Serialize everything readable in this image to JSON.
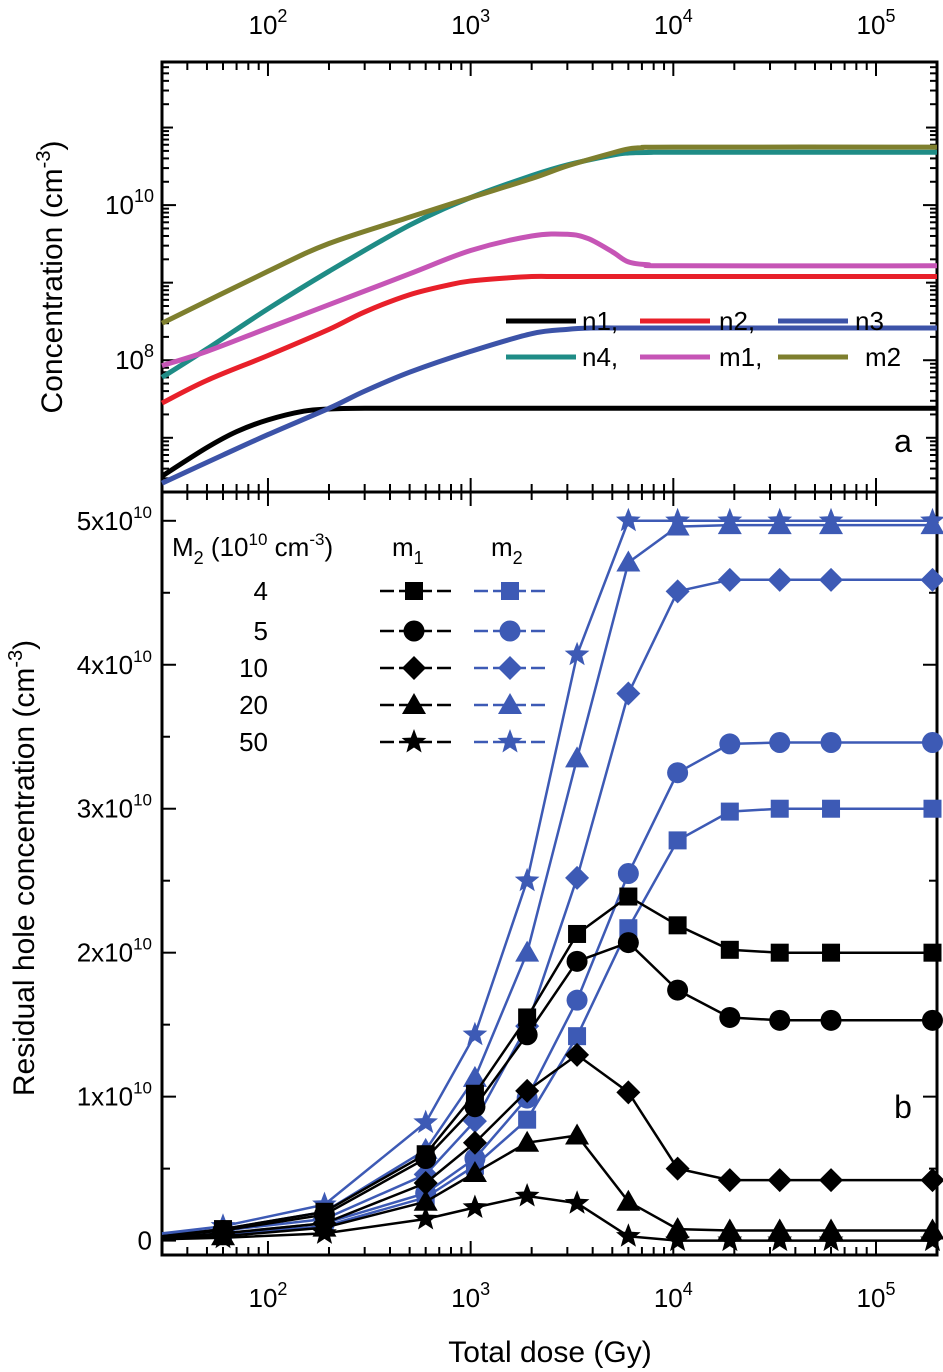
{
  "figure": {
    "xlabel": "Total dose (Gy)",
    "panel_a_label": "a",
    "panel_b_label": "b",
    "ylabel_a_text": "Concentration (cm",
    "ylabel_a_sup": "-3",
    "ylabel_a_close": ")",
    "ylabel_b_text": "Residual hole concentration (cm",
    "ylabel_b_sup": "-3",
    "ylabel_b_close": ")",
    "x_tick_base": "10",
    "x_tick_exps": [
      "2",
      "3",
      "4",
      "5"
    ],
    "a_tick_base": "10",
    "a_tick_exps": [
      "8",
      "10"
    ],
    "b_tick_labels": [
      "0",
      "1x10",
      "2x10",
      "3x10",
      "4x10",
      "5x10"
    ],
    "b_tick_sup": "10",
    "legend_a": {
      "row1": [
        "n1,",
        "n2,",
        "n3"
      ],
      "row2": [
        "n4,",
        "m1,",
        "m2"
      ]
    },
    "legend_b": {
      "header_main": "M",
      "header_sub": "2",
      "header_units": " (10",
      "header_units_sup": "10",
      "header_units_tail": " cm",
      "header_units_sup2": "-3",
      "header_close": ")",
      "col1_main": "m",
      "col1_sub": "1",
      "col2_main": "m",
      "col2_sub": "2",
      "values": [
        "4",
        "5",
        "10",
        "20",
        "50"
      ]
    }
  },
  "colors": {
    "n1": "#000000",
    "n2": "#e8202a",
    "n3": "#3c53a8",
    "n4": "#1f8c86",
    "m1": "#c655b6",
    "m2": "#7e7f2e",
    "black": "#000000",
    "blue": "#3d5ab5"
  },
  "chart_data": [
    {
      "type": "line",
      "panel": "a",
      "xscale": "log",
      "yscale": "log",
      "xlim": [
        30,
        200000
      ],
      "ylim": [
        2000000,
        700000000000
      ],
      "xlabel": "",
      "ylabel": "Concentration (cm-3)",
      "legend": "right",
      "series": [
        {
          "name": "n1",
          "x": [
            30,
            50,
            70,
            100,
            150,
            200,
            300,
            500,
            1000,
            10000,
            200000
          ],
          "y": [
            3200000,
            7500000,
            12000000,
            17000000,
            22000000,
            23500000,
            24000000,
            24000000,
            24000000,
            24000000,
            24000000
          ]
        },
        {
          "name": "n2",
          "x": [
            30,
            50,
            100,
            200,
            300,
            500,
            800,
            1000,
            1500,
            2000,
            3000,
            10000,
            200000
          ],
          "y": [
            28000000,
            55000000,
            115000000,
            250000000,
            420000000,
            700000000,
            950000000,
            1050000000,
            1150000000,
            1200000000,
            1200000000,
            1200000000,
            1200000000
          ]
        },
        {
          "name": "n3",
          "x": [
            30,
            60,
            100,
            200,
            300,
            500,
            1000,
            2000,
            3000,
            4000,
            6000,
            10000,
            200000
          ],
          "y": [
            2600000,
            6000000,
            11000000,
            24000000,
            40000000,
            70000000,
            130000000,
            220000000,
            250000000,
            260000000,
            260000000,
            260000000,
            260000000
          ]
        },
        {
          "name": "n4",
          "x": [
            30,
            50,
            100,
            200,
            500,
            1000,
            2000,
            3000,
            5000,
            6000,
            8000,
            10000,
            200000
          ],
          "y": [
            60000000,
            140000000,
            460000000,
            1400000000,
            5500000000,
            12500000000,
            24000000000,
            33000000000,
            44000000000,
            47000000000,
            48000000000,
            48000000000,
            48000000000
          ]
        },
        {
          "name": "m1",
          "x": [
            30,
            50,
            100,
            200,
            500,
            1000,
            2000,
            3000,
            3800,
            5000,
            6000,
            7500,
            10000,
            200000
          ],
          "y": [
            85000000,
            130000000,
            260000000,
            520000000,
            1300000000,
            2600000000,
            4000000000,
            4200000000,
            3700000000,
            2500000000,
            1850000000,
            1700000000,
            1650000000,
            1650000000
          ]
        },
        {
          "name": "m2",
          "x": [
            30,
            100,
            200,
            500,
            1000,
            2000,
            3000,
            5000,
            6000,
            7000,
            10000,
            200000
          ],
          "y": [
            300000000,
            1400000000,
            3200000000,
            7000000000,
            12500000000,
            22000000000,
            32000000000,
            47000000000,
            53000000000,
            55000000000,
            56000000000,
            56000000000
          ]
        }
      ]
    },
    {
      "type": "line",
      "panel": "b",
      "xscale": "log",
      "yscale": "linear",
      "xlim": [
        30,
        200000
      ],
      "ylim": [
        -0.1,
        5.2
      ],
      "y_unit": "1x10^10 cm-3",
      "xlabel": "Total dose (Gy)",
      "ylabel": "Residual hole concentration (cm-3)",
      "legend": "top-left",
      "x": [
        30,
        60,
        190,
        600,
        1050,
        1900,
        3350,
        6000,
        10500,
        19000,
        33500,
        60000,
        190000
      ],
      "series": [
        {
          "name": "m1 4",
          "marker": "square",
          "color": "black",
          "values": [
            0.03,
            0.08,
            0.2,
            0.6,
            1.02,
            1.55,
            2.13,
            2.39,
            2.19,
            2.02,
            2.0,
            2.0,
            2.0
          ]
        },
        {
          "name": "m1 5",
          "marker": "circle",
          "color": "black",
          "values": [
            0.03,
            0.07,
            0.18,
            0.57,
            0.93,
            1.43,
            1.94,
            2.07,
            1.74,
            1.55,
            1.53,
            1.53,
            1.53
          ]
        },
        {
          "name": "m1 10",
          "marker": "diamond",
          "color": "black",
          "values": [
            0.02,
            0.05,
            0.12,
            0.4,
            0.68,
            1.04,
            1.29,
            1.03,
            0.5,
            0.42,
            0.42,
            0.42,
            0.42
          ]
        },
        {
          "name": "m1 20",
          "marker": "triangle",
          "color": "black",
          "values": [
            0.02,
            0.03,
            0.09,
            0.27,
            0.47,
            0.68,
            0.73,
            0.27,
            0.08,
            0.07,
            0.07,
            0.07,
            0.07
          ]
        },
        {
          "name": "m1 50",
          "marker": "star",
          "color": "black",
          "values": [
            0.01,
            0.02,
            0.05,
            0.15,
            0.23,
            0.31,
            0.26,
            0.03,
            0.0,
            0.0,
            0.0,
            0.0,
            0.0
          ]
        },
        {
          "name": "m2 4",
          "marker": "square",
          "color": "blue",
          "values": [
            0.02,
            0.04,
            0.1,
            0.3,
            0.52,
            0.84,
            1.42,
            2.17,
            2.78,
            2.98,
            3.0,
            3.0,
            3.0
          ]
        },
        {
          "name": "m2 5",
          "marker": "circle",
          "color": "blue",
          "values": [
            0.02,
            0.05,
            0.12,
            0.33,
            0.57,
            0.99,
            1.67,
            2.55,
            3.25,
            3.45,
            3.46,
            3.46,
            3.46
          ]
        },
        {
          "name": "m2 10",
          "marker": "diamond",
          "color": "blue",
          "values": [
            0.03,
            0.07,
            0.15,
            0.46,
            0.83,
            1.49,
            2.52,
            3.8,
            4.51,
            4.59,
            4.59,
            4.59,
            4.59
          ]
        },
        {
          "name": "m2 20",
          "marker": "triangle",
          "color": "blue",
          "values": [
            0.04,
            0.08,
            0.2,
            0.63,
            1.13,
            2.0,
            3.35,
            4.71,
            4.96,
            4.97,
            4.97,
            4.97,
            4.97
          ]
        },
        {
          "name": "m2 50",
          "marker": "star",
          "color": "blue",
          "values": [
            0.05,
            0.1,
            0.25,
            0.82,
            1.43,
            2.5,
            4.07,
            5.0,
            5.0,
            5.0,
            5.0,
            5.0,
            5.0
          ]
        }
      ]
    }
  ]
}
